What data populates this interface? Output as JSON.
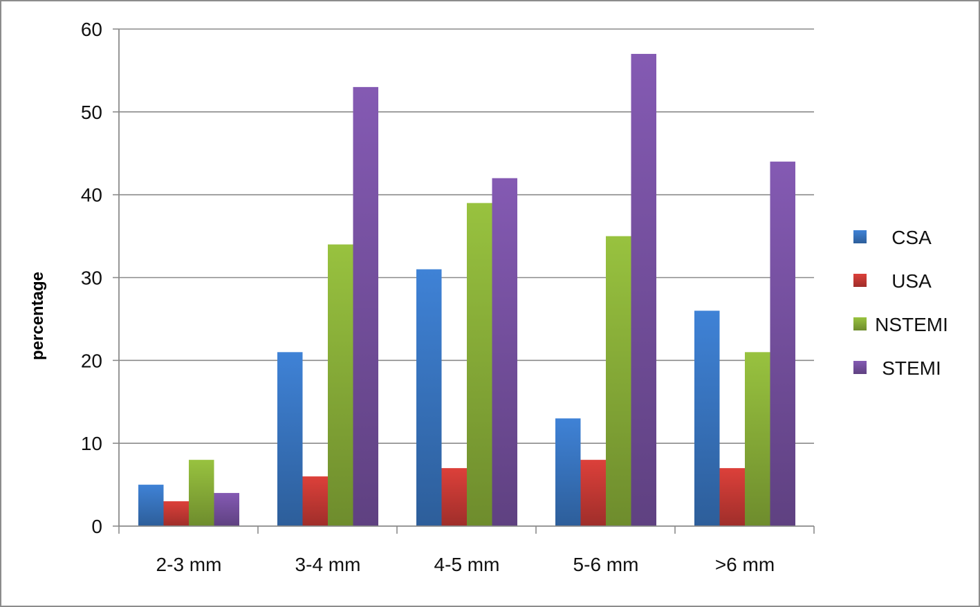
{
  "chart_data": {
    "type": "bar",
    "categories": [
      "2-3 mm",
      "3-4 mm",
      "4-5 mm",
      "5-6 mm",
      ">6 mm"
    ],
    "series": [
      {
        "name": "CSA",
        "values": [
          5,
          21,
          31,
          13,
          26
        ],
        "color": "#3a78c6"
      },
      {
        "name": "USA",
        "values": [
          3,
          6,
          7,
          8,
          7
        ],
        "color": "#cc3b36"
      },
      {
        "name": "NSTEMI",
        "values": [
          8,
          34,
          39,
          35,
          21
        ],
        "color": "#8db43a"
      },
      {
        "name": "STEMI",
        "values": [
          4,
          53,
          42,
          57,
          44
        ],
        "color": "#7a53a6"
      }
    ],
    "title": "",
    "xlabel": "",
    "ylabel": "percentage",
    "ylim": [
      0,
      60
    ],
    "yticks": [
      0,
      10,
      20,
      30,
      40,
      50,
      60
    ],
    "grid": true,
    "legend_position": "right"
  }
}
